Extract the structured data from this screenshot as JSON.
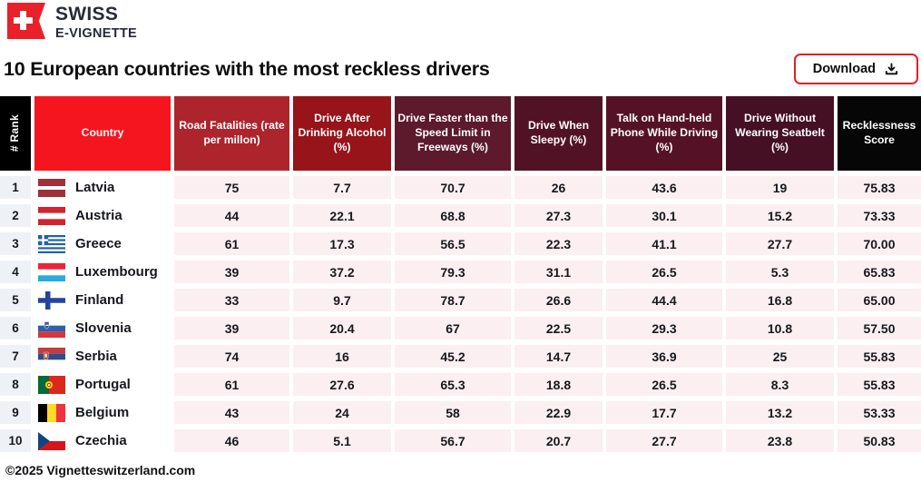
{
  "brand": {
    "logo_icon": "swiss-cross-ribbon-icon",
    "title_top": "SWISS",
    "title_bottom": "E-VIGNETTE",
    "flag_red": "#E8212B",
    "text_color": "#272C37"
  },
  "header": {
    "title": "10 European countries with the most reckless drivers",
    "download_button": {
      "label": "Download",
      "icon": "download-icon",
      "border_color": "#E31E28"
    }
  },
  "footer": {
    "copyright": "©2025 Vignetteswitzerland.com"
  },
  "colors": {
    "rank_cell_bg": "#EEF2F7",
    "country_cell_bg": "#FFFFFF",
    "value_cell_bg": "#FBEFF1",
    "body_text": "#16181D"
  },
  "table": {
    "columns": [
      {
        "id": "rank",
        "label": "# Rank",
        "bg": "#000000"
      },
      {
        "id": "country",
        "label": "Country",
        "bg": "#F5151F"
      },
      {
        "id": "road-fatalities",
        "label": "Road Fatalities (rate per millon)",
        "bg": "#AD242C"
      },
      {
        "id": "drink-driving",
        "label": "Drive After Drinking Alcohol (%)",
        "bg": "#97141B"
      },
      {
        "id": "speeding",
        "label": "Drive Faster than the Speed Limit in Freeways (%)",
        "bg": "#5C1A2C"
      },
      {
        "id": "sleepy",
        "label": "Drive When Sleepy (%)",
        "bg": "#521226"
      },
      {
        "id": "phone",
        "label": "Talk on Hand-held Phone While Driving (%)",
        "bg": "#551226"
      },
      {
        "id": "seatbelt",
        "label": "Drive Without Wearing Seatbelt (%)",
        "bg": "#451023"
      },
      {
        "id": "score",
        "label": "Recklessness Score",
        "bg": "#060607"
      }
    ],
    "rows": [
      {
        "rank": "1",
        "country": "Latvia",
        "flag": "lv",
        "values": [
          "75",
          "7.7",
          "70.7",
          "26",
          "43.6",
          "19",
          "75.83"
        ]
      },
      {
        "rank": "2",
        "country": "Austria",
        "flag": "at",
        "values": [
          "44",
          "22.1",
          "68.8",
          "27.3",
          "30.1",
          "15.2",
          "73.33"
        ]
      },
      {
        "rank": "3",
        "country": "Greece",
        "flag": "gr",
        "values": [
          "61",
          "17.3",
          "56.5",
          "22.3",
          "41.1",
          "27.7",
          "70.00"
        ]
      },
      {
        "rank": "4",
        "country": "Luxembourg",
        "flag": "lu",
        "values": [
          "39",
          "37.2",
          "79.3",
          "31.1",
          "26.5",
          "5.3",
          "65.83"
        ]
      },
      {
        "rank": "5",
        "country": "Finland",
        "flag": "fi",
        "values": [
          "33",
          "9.7",
          "78.7",
          "26.6",
          "44.4",
          "16.8",
          "65.00"
        ]
      },
      {
        "rank": "6",
        "country": "Slovenia",
        "flag": "si",
        "values": [
          "39",
          "20.4",
          "67",
          "22.5",
          "29.3",
          "10.8",
          "57.50"
        ]
      },
      {
        "rank": "7",
        "country": "Serbia",
        "flag": "rs",
        "values": [
          "74",
          "16",
          "45.2",
          "14.7",
          "36.9",
          "25",
          "55.83"
        ]
      },
      {
        "rank": "8",
        "country": "Portugal",
        "flag": "pt",
        "values": [
          "61",
          "27.6",
          "65.3",
          "18.8",
          "26.5",
          "8.3",
          "55.83"
        ]
      },
      {
        "rank": "9",
        "country": "Belgium",
        "flag": "be",
        "values": [
          "43",
          "24",
          "58",
          "22.9",
          "17.7",
          "13.2",
          "53.33"
        ]
      },
      {
        "rank": "10",
        "country": "Czechia",
        "flag": "cz",
        "values": [
          "46",
          "5.1",
          "56.7",
          "20.7",
          "27.7",
          "23.8",
          "50.83"
        ]
      }
    ]
  },
  "chart_data": {
    "type": "table",
    "title": "10 European countries with the most reckless drivers",
    "columns": [
      "# Rank",
      "Country",
      "Road Fatalities (rate per millon)",
      "Drive After Drinking Alcohol (%)",
      "Drive Faster than the Speed Limit in Freeways (%)",
      "Drive When Sleepy (%)",
      "Talk on Hand-held Phone While Driving (%)",
      "Drive Without Wearing Seatbelt (%)",
      "Recklessness Score"
    ],
    "rows": [
      [
        1,
        "Latvia",
        75,
        7.7,
        70.7,
        26,
        43.6,
        19,
        75.83
      ],
      [
        2,
        "Austria",
        44,
        22.1,
        68.8,
        27.3,
        30.1,
        15.2,
        73.33
      ],
      [
        3,
        "Greece",
        61,
        17.3,
        56.5,
        22.3,
        41.1,
        27.7,
        70.0
      ],
      [
        4,
        "Luxembourg",
        39,
        37.2,
        79.3,
        31.1,
        26.5,
        5.3,
        65.83
      ],
      [
        5,
        "Finland",
        33,
        9.7,
        78.7,
        26.6,
        44.4,
        16.8,
        65.0
      ],
      [
        6,
        "Slovenia",
        39,
        20.4,
        67,
        22.5,
        29.3,
        10.8,
        57.5
      ],
      [
        7,
        "Serbia",
        74,
        16,
        45.2,
        14.7,
        36.9,
        25,
        55.83
      ],
      [
        8,
        "Portugal",
        61,
        27.6,
        65.3,
        18.8,
        26.5,
        8.3,
        55.83
      ],
      [
        9,
        "Belgium",
        43,
        24,
        58,
        22.9,
        17.7,
        13.2,
        53.33
      ],
      [
        10,
        "Czechia",
        46,
        5.1,
        56.7,
        20.7,
        27.7,
        23.8,
        50.83
      ]
    ]
  }
}
